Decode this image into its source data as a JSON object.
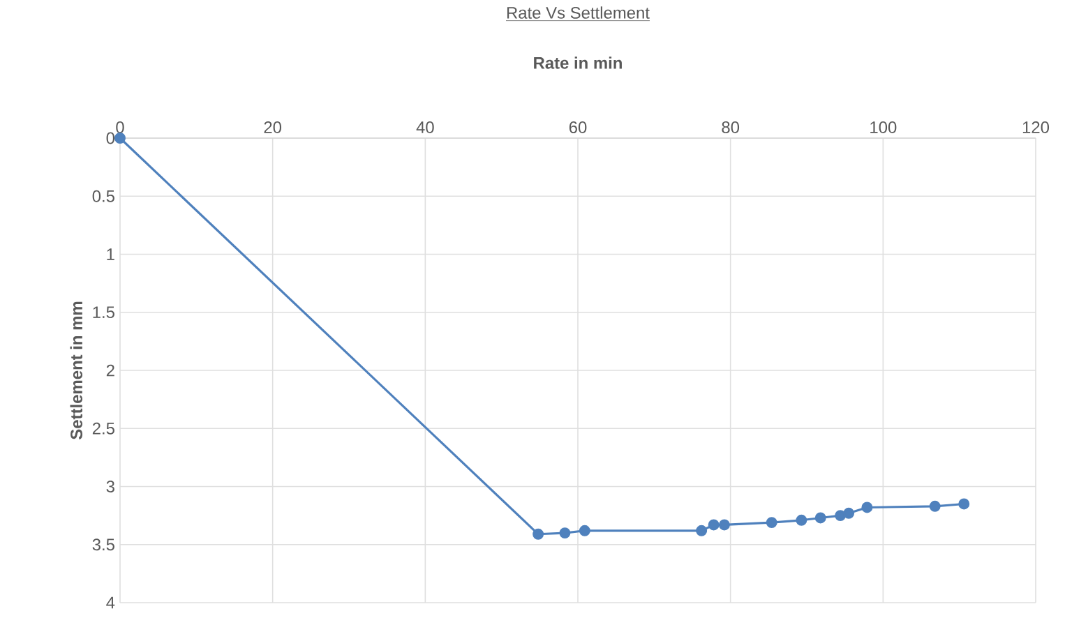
{
  "chart_data": {
    "type": "line",
    "title": "Rate Vs Settlement",
    "xlabel": "Rate in min",
    "ylabel": "Settlement in mm",
    "x": [
      0,
      54.8,
      58.3,
      60.9,
      76.2,
      77.8,
      79.2,
      85.4,
      89.3,
      91.8,
      94.4,
      95.5,
      97.9,
      106.8,
      110.6
    ],
    "series": [
      {
        "color": "#4f81bd",
        "values": [
          0,
          3.41,
          3.4,
          3.38,
          3.38,
          3.33,
          3.33,
          3.31,
          3.29,
          3.27,
          3.25,
          3.23,
          3.18,
          3.17,
          3.15
        ]
      }
    ],
    "xlim": [
      0,
      120
    ],
    "xticks": [
      0,
      20,
      40,
      60,
      80,
      100,
      120
    ],
    "ylim": [
      4,
      0
    ],
    "yticks": [
      0,
      0.5,
      1,
      1.5,
      2,
      2.5,
      3,
      3.5,
      4
    ],
    "grid": true,
    "marker": "circle",
    "line_style": "solid",
    "legend": false
  }
}
